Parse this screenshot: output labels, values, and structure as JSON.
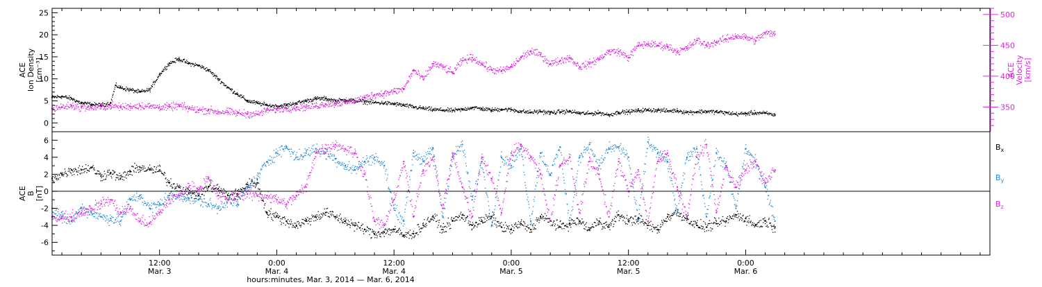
{
  "colors": {
    "density": "#000000",
    "velocity": "#e020e0",
    "bx": "#000000",
    "by": "#1e88d8",
    "bz": "#e020e0"
  },
  "x_axis": {
    "title": "hours:minutes, Mar.  3, 2014 — Mar.  6, 2014",
    "range_hours": [
      0,
      96
    ],
    "ticks": [
      {
        "hour": 11,
        "time": "12:00",
        "date": "Mar. 3"
      },
      {
        "hour": 23,
        "time": "0:00",
        "date": "Mar. 4"
      },
      {
        "hour": 35,
        "time": "12:00",
        "date": "Mar. 4"
      },
      {
        "hour": 47,
        "time": "0:00",
        "date": "Mar. 5"
      },
      {
        "hour": 59,
        "time": "12:00",
        "date": "Mar. 5"
      },
      {
        "hour": 71,
        "time": "0:00",
        "date": "Mar. 6"
      }
    ]
  },
  "chart_data": [
    {
      "type": "scatter",
      "panel": "top",
      "left_axis": {
        "label_lines": [
          "ACE",
          "Ion Density",
          "[cm⁻³]"
        ],
        "ylim": [
          -2,
          26
        ],
        "ticks": [
          0,
          5,
          10,
          15,
          20,
          25
        ]
      },
      "right_axis": {
        "label_lines": [
          "ACE",
          "Velocity",
          "[km/s]"
        ],
        "ylim": [
          310,
          510
        ],
        "ticks": [
          350,
          400,
          450,
          500
        ]
      },
      "series": [
        {
          "name": "",
          "axis": "left",
          "x": [
            0,
            1,
            2,
            3,
            4,
            5,
            6,
            6.5,
            7,
            8,
            9,
            10,
            11,
            12,
            13,
            14,
            15,
            16,
            17,
            18,
            19,
            20,
            21,
            22,
            23,
            24,
            25,
            26,
            27,
            28,
            29,
            30,
            31,
            32,
            33,
            34,
            35,
            36,
            37,
            38,
            39,
            40,
            41,
            42,
            43,
            44,
            45,
            46,
            47,
            48,
            49,
            50,
            51,
            52,
            53,
            54,
            55,
            56,
            57,
            58,
            59,
            60,
            61,
            62,
            63,
            64,
            65,
            66,
            67,
            68,
            69,
            70,
            71,
            72,
            73,
            74
          ],
          "y": [
            5.8,
            6.0,
            5.5,
            4.5,
            4.2,
            4.0,
            4.5,
            8.5,
            8.0,
            7.5,
            7.0,
            7.5,
            11.0,
            13.5,
            14.5,
            13.5,
            13.0,
            12.0,
            10.0,
            8.0,
            6.5,
            5.0,
            4.5,
            4.0,
            3.8,
            4.0,
            4.5,
            5.0,
            5.5,
            5.5,
            5.0,
            5.2,
            5.0,
            4.8,
            4.6,
            4.5,
            4.3,
            4.0,
            3.6,
            3.3,
            3.0,
            2.9,
            2.8,
            3.0,
            3.5,
            3.2,
            2.9,
            3.1,
            3.0,
            2.6,
            2.4,
            2.6,
            2.3,
            2.5,
            2.6,
            2.2,
            2.1,
            2.3,
            1.8,
            2.4,
            2.5,
            2.8,
            2.9,
            2.9,
            2.7,
            2.8,
            2.4,
            2.5,
            2.6,
            2.5,
            2.3,
            2.0,
            2.1,
            2.3,
            2.2,
            1.8
          ]
        },
        {
          "name": "",
          "axis": "right",
          "x": [
            0,
            1,
            2,
            3,
            4,
            5,
            6,
            7,
            8,
            9,
            10,
            11,
            12,
            13,
            14,
            15,
            16,
            17,
            18,
            19,
            20,
            21,
            22,
            23,
            24,
            25,
            26,
            27,
            28,
            29,
            30,
            31,
            32,
            33,
            34,
            35,
            36,
            37,
            38,
            39,
            40,
            41,
            42,
            43,
            44,
            45,
            46,
            47,
            48,
            49,
            50,
            51,
            52,
            53,
            54,
            55,
            56,
            57,
            58,
            59,
            60,
            61,
            62,
            63,
            64,
            65,
            66,
            67,
            68,
            69,
            70,
            71,
            72,
            73,
            74
          ],
          "y": [
            348,
            350,
            352,
            350,
            349,
            350,
            352,
            350,
            351,
            352,
            351,
            350,
            350,
            352,
            348,
            345,
            345,
            342,
            342,
            340,
            339,
            338,
            345,
            346,
            348,
            349,
            350,
            352,
            355,
            356,
            357,
            360,
            365,
            370,
            372,
            375,
            379,
            410,
            395,
            420,
            415,
            405,
            425,
            430,
            420,
            410,
            408,
            415,
            430,
            440,
            435,
            420,
            425,
            430,
            415,
            420,
            428,
            440,
            440,
            430,
            450,
            452,
            450,
            448,
            440,
            445,
            458,
            450,
            455,
            460,
            465,
            463,
            458,
            470,
            468
          ]
        }
      ]
    },
    {
      "type": "scatter",
      "panel": "bottom",
      "left_axis": {
        "label_lines": [
          "ACE",
          "B",
          "[nT]"
        ],
        "ylim": [
          -7.5,
          7
        ],
        "ticks": [
          -6,
          -4,
          -2,
          0,
          2,
          4,
          6
        ]
      },
      "legend": [
        {
          "label": "B",
          "sub": "x",
          "color_key": "bx"
        },
        {
          "label": "B",
          "sub": "y",
          "color_key": "by"
        },
        {
          "label": "B",
          "sub": "z",
          "color_key": "bz"
        }
      ],
      "series": [
        {
          "name": "Bx",
          "x": [
            0,
            1,
            2,
            3,
            4,
            5,
            6,
            7,
            8,
            9,
            10,
            11,
            12,
            13,
            14,
            15,
            16,
            17,
            18,
            19,
            20,
            21,
            22,
            23,
            24,
            25,
            26,
            27,
            28,
            29,
            30,
            31,
            32,
            33,
            34,
            35,
            36,
            37,
            38,
            39,
            40,
            41,
            42,
            43,
            44,
            45,
            46,
            47,
            48,
            49,
            50,
            51,
            52,
            53,
            54,
            55,
            56,
            57,
            58,
            59,
            60,
            61,
            62,
            63,
            64,
            65,
            66,
            67,
            68,
            69,
            70,
            71,
            72,
            73,
            74
          ],
          "y": [
            1.5,
            2.0,
            2.5,
            2.5,
            2.8,
            1.8,
            2.2,
            1.5,
            2.3,
            2.8,
            2.5,
            2.5,
            1.0,
            0.5,
            -0.2,
            -0.5,
            0.5,
            0.3,
            -0.5,
            -0.3,
            0.8,
            1.0,
            -2.5,
            -3.0,
            -3.5,
            -4.0,
            -3.5,
            -3.0,
            -2.5,
            -3.0,
            -3.5,
            -4.0,
            -4.5,
            -5.0,
            -4.8,
            -4.5,
            -5.2,
            -5.0,
            -4.0,
            -3.0,
            -4.5,
            -3.5,
            -2.8,
            -4.0,
            -3.5,
            -3.0,
            -4.2,
            -4.5,
            -3.8,
            -4.5,
            -3.0,
            -3.5,
            -4.2,
            -3.8,
            -3.5,
            -4.5,
            -3.5,
            -4.2,
            -2.8,
            -3.5,
            -3.2,
            -4.0,
            -4.5,
            -3.0,
            -2.5,
            -3.2,
            -4.0,
            -4.2,
            -3.8,
            -3.5,
            -2.8,
            -3.2,
            -4.0,
            -3.5,
            -4.2
          ]
        },
        {
          "name": "By",
          "x": [
            0,
            1,
            2,
            3,
            4,
            5,
            6,
            7,
            8,
            9,
            10,
            11,
            12,
            13,
            14,
            15,
            16,
            17,
            18,
            19,
            20,
            21,
            22,
            23,
            24,
            25,
            26,
            27,
            28,
            29,
            30,
            31,
            32,
            33,
            34,
            35,
            36,
            37,
            38,
            39,
            40,
            41,
            42,
            43,
            44,
            45,
            46,
            47,
            48,
            49,
            50,
            51,
            52,
            53,
            54,
            55,
            56,
            57,
            58,
            59,
            60,
            61,
            62,
            63,
            64,
            65,
            66,
            67,
            68,
            69,
            70,
            71,
            72,
            73,
            74
          ],
          "y": [
            -2.0,
            -3.0,
            -3.5,
            -2.0,
            -2.5,
            -3.0,
            -3.2,
            -3.5,
            -1.0,
            -0.5,
            -2.0,
            -1.5,
            -0.5,
            -0.5,
            -0.8,
            -1.0,
            -1.5,
            -2.0,
            -1.0,
            -1.5,
            0.5,
            1.5,
            3.5,
            4.5,
            5.2,
            4.0,
            4.5,
            5.0,
            4.5,
            3.8,
            3.0,
            2.5,
            3.5,
            4.0,
            3.0,
            -2.0,
            -3.5,
            4.5,
            3.5,
            5.0,
            -3.0,
            4.0,
            5.5,
            -1.0,
            3.5,
            -4.0,
            4.0,
            3.0,
            5.0,
            -3.5,
            4.5,
            2.0,
            5.2,
            -4.0,
            4.0,
            5.5,
            3.0,
            5.0,
            5.2,
            4.0,
            -3.5,
            5.8,
            4.5,
            3.5,
            -2.5,
            4.0,
            5.0,
            -3.0,
            4.5,
            3.0,
            -2.0,
            5.0,
            3.5,
            0.5,
            -3.5
          ]
        },
        {
          "name": "Bz",
          "x": [
            0,
            1,
            2,
            3,
            4,
            5,
            6,
            7,
            8,
            9,
            10,
            11,
            12,
            13,
            14,
            15,
            16,
            17,
            18,
            19,
            20,
            21,
            22,
            23,
            24,
            25,
            26,
            27,
            28,
            29,
            30,
            31,
            32,
            33,
            34,
            35,
            36,
            37,
            38,
            39,
            40,
            41,
            42,
            43,
            44,
            45,
            46,
            47,
            48,
            49,
            50,
            51,
            52,
            53,
            54,
            55,
            56,
            57,
            58,
            59,
            60,
            61,
            62,
            63,
            64,
            65,
            66,
            67,
            68,
            69,
            70,
            71,
            72,
            73,
            74
          ],
          "y": [
            -3.0,
            -3.2,
            -3.0,
            -2.5,
            -2.0,
            -1.5,
            -1.0,
            -2.5,
            -2.0,
            -3.5,
            -3.8,
            -2.5,
            -1.0,
            -0.5,
            0.5,
            0.2,
            1.5,
            -0.5,
            -1.0,
            -0.5,
            -0.3,
            -0.5,
            -0.5,
            -1.0,
            -1.5,
            -0.5,
            0.5,
            4.5,
            5.0,
            5.5,
            5.0,
            4.5,
            2.0,
            -3.5,
            -4.0,
            -1.0,
            3.5,
            -3.0,
            2.5,
            4.0,
            -2.0,
            4.5,
            0.5,
            -3.0,
            4.0,
            1.5,
            -2.5,
            4.5,
            5.5,
            4.0,
            2.0,
            -3.5,
            3.0,
            4.0,
            -2.5,
            3.5,
            2.0,
            -3.0,
            3.5,
            0.0,
            2.5,
            -3.5,
            3.5,
            4.5,
            0.5,
            -3.0,
            4.0,
            5.5,
            -2.5,
            3.0,
            0.5,
            2.5,
            3.5,
            1.0,
            2.5
          ]
        }
      ]
    }
  ]
}
